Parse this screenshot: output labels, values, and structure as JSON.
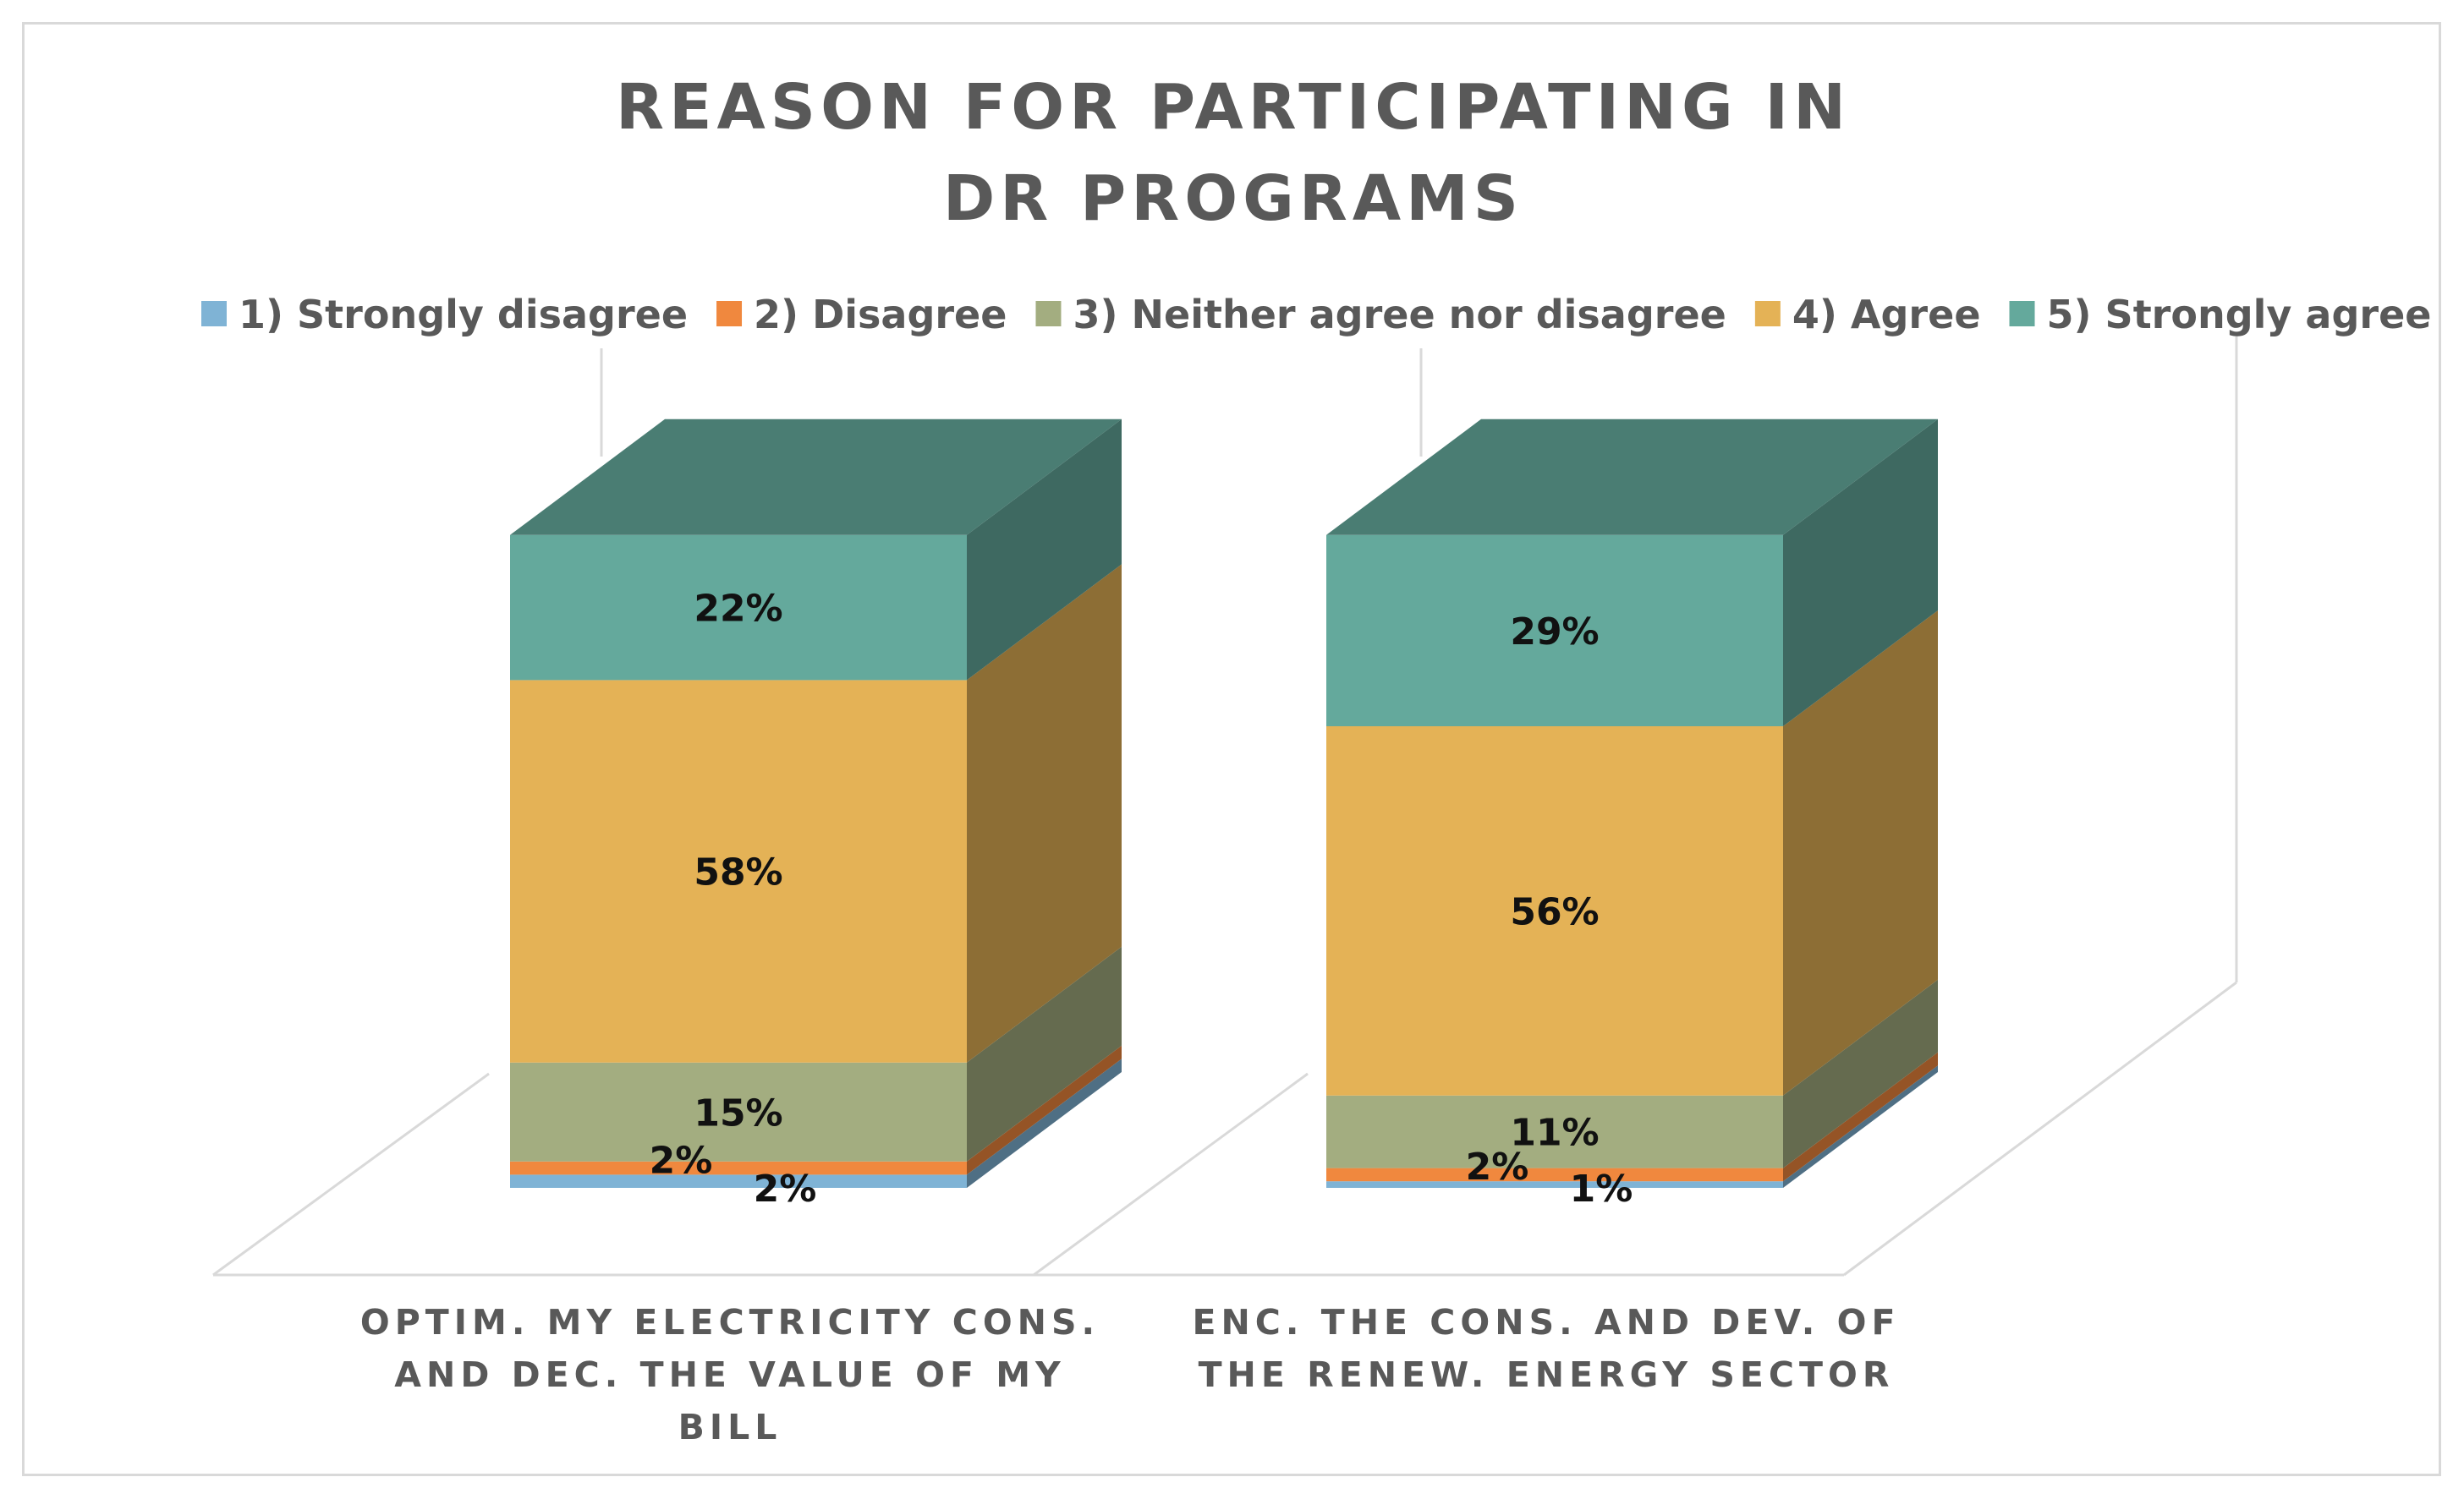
{
  "chart_data": {
    "type": "bar",
    "subtype": "3d-stacked-percent",
    "title": [
      "REASON FOR PARTICIPATING IN",
      "DR PROGRAMS"
    ],
    "categories": [
      [
        "OPTIM. MY ELECTRICITY CONS.",
        "AND DEC. THE VALUE OF MY",
        "BILL"
      ],
      [
        "ENC. THE CONS. AND DEV. OF",
        "THE RENEW. ENERGY SECTOR"
      ]
    ],
    "series": [
      {
        "name": "1) Strongly disagree",
        "values": [
          2,
          1
        ],
        "labels": [
          "2%",
          "1%"
        ],
        "color": "#7fb3d5"
      },
      {
        "name": "2) Disagree",
        "values": [
          2,
          2
        ],
        "labels": [
          "2%",
          "2%"
        ],
        "color": "#f0883e"
      },
      {
        "name": "3) Neither agree nor disagree",
        "values": [
          15,
          11
        ],
        "labels": [
          "15%",
          "11%"
        ],
        "color": "#a3ad80"
      },
      {
        "name": "4) Agree",
        "values": [
          58,
          56
        ],
        "labels": [
          "58%",
          "56%"
        ],
        "color": "#e4b256"
      },
      {
        "name": "5) Strongly agree",
        "values": [
          22,
          29
        ],
        "labels": [
          "22%",
          "29%"
        ],
        "color": "#64a99c"
      }
    ],
    "ylim": [
      0,
      100
    ],
    "legend_position": "top",
    "grid": false,
    "xlabel": "",
    "ylabel": ""
  }
}
